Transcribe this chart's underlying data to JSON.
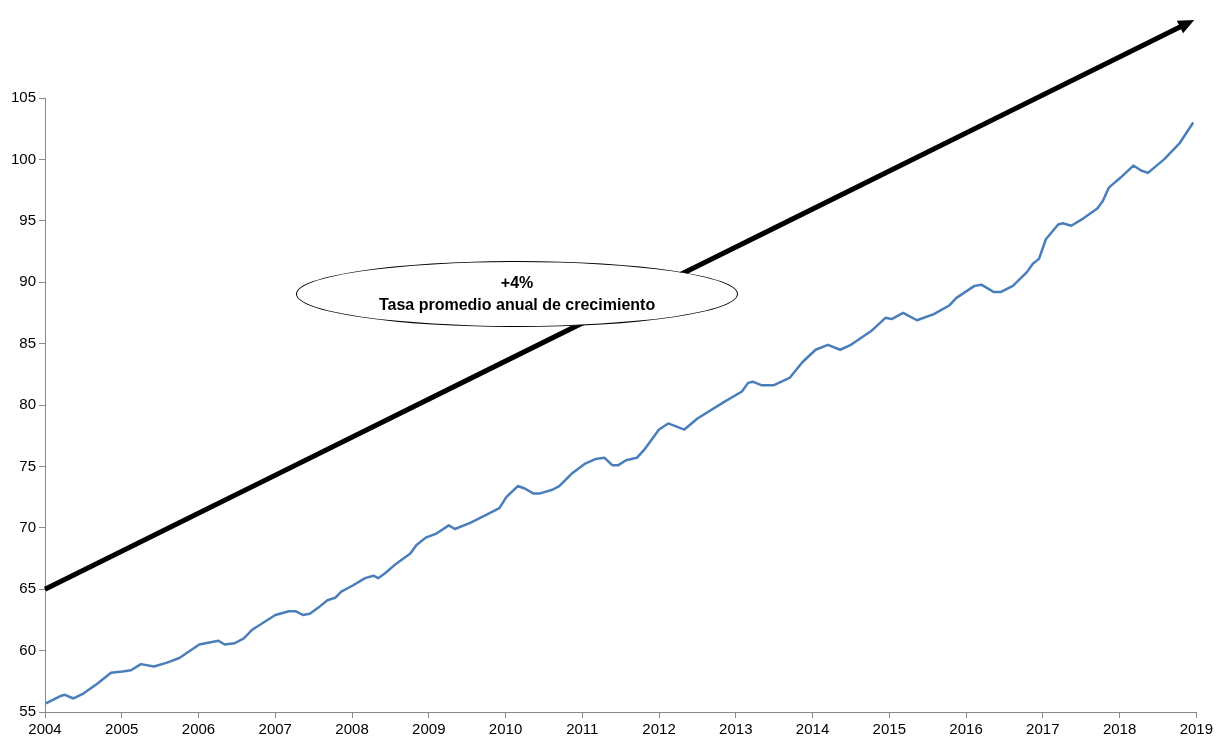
{
  "chart_data": {
    "type": "line",
    "xlim": [
      2004,
      2019
    ],
    "xticks": [
      2004,
      2005,
      2006,
      2007,
      2008,
      2009,
      2010,
      2011,
      2012,
      2013,
      2014,
      2015,
      2016,
      2017,
      2018,
      2019
    ],
    "ylim": [
      55,
      105
    ],
    "yticks": [
      55,
      60,
      65,
      70,
      75,
      80,
      85,
      90,
      95,
      100,
      105
    ],
    "grid": false,
    "marker": "none",
    "line_style": "solid",
    "annotations": [
      "+4%",
      "Tasa promedio anual de crecimiento"
    ],
    "series": [
      {
        "color": "#4a7ebb",
        "x": [
          2004.01,
          2004.2,
          2004.26,
          2004.37,
          2004.5,
          2004.68,
          2004.86,
          2005.01,
          2005.12,
          2005.25,
          2005.42,
          2005.58,
          2005.75,
          2006.01,
          2006.26,
          2006.34,
          2006.47,
          2006.59,
          2006.7,
          2007.0,
          2007.18,
          2007.27,
          2007.36,
          2007.45,
          2007.58,
          2007.68,
          2007.78,
          2007.86,
          2008.01,
          2008.17,
          2008.28,
          2008.34,
          2008.43,
          2008.58,
          2008.76,
          2008.84,
          2008.96,
          2009.09,
          2009.26,
          2009.34,
          2009.54,
          2009.76,
          2009.92,
          2010.01,
          2010.16,
          2010.25,
          2010.36,
          2010.45,
          2010.61,
          2010.7,
          2010.86,
          2011.03,
          2011.17,
          2011.29,
          2011.39,
          2011.47,
          2011.57,
          2011.71,
          2011.8,
          2012.0,
          2012.12,
          2012.33,
          2012.5,
          2012.86,
          2013.08,
          2013.16,
          2013.22,
          2013.34,
          2013.49,
          2013.7,
          2013.87,
          2014.04,
          2014.2,
          2014.36,
          2014.5,
          2014.76,
          2014.95,
          2015.03,
          2015.18,
          2015.36,
          2015.58,
          2015.78,
          2015.87,
          2016.11,
          2016.2,
          2016.36,
          2016.45,
          2016.61,
          2016.79,
          2016.87,
          2016.95,
          2017.04,
          2017.2,
          2017.26,
          2017.37,
          2017.53,
          2017.71,
          2017.78,
          2017.86,
          2018.01,
          2018.18,
          2018.28,
          2018.37,
          2018.58,
          2018.78,
          2018.96
        ],
        "values": [
          55.7,
          56.3,
          56.4,
          56.1,
          56.5,
          57.3,
          58.2,
          58.3,
          58.4,
          58.9,
          58.7,
          59.0,
          59.4,
          60.5,
          60.8,
          60.5,
          60.6,
          61.0,
          61.7,
          62.9,
          63.2,
          63.2,
          62.9,
          63.0,
          63.6,
          64.1,
          64.3,
          64.8,
          65.3,
          65.9,
          66.1,
          65.9,
          66.3,
          67.1,
          67.9,
          68.6,
          69.2,
          69.5,
          70.2,
          69.9,
          70.4,
          71.1,
          71.6,
          72.5,
          73.4,
          73.2,
          72.8,
          72.8,
          73.1,
          73.4,
          74.4,
          75.2,
          75.6,
          75.7,
          75.1,
          75.1,
          75.5,
          75.7,
          76.3,
          78.0,
          78.5,
          78.0,
          78.9,
          80.3,
          81.1,
          81.8,
          81.9,
          81.6,
          81.6,
          82.2,
          83.5,
          84.5,
          84.9,
          84.5,
          84.9,
          86.0,
          87.1,
          87.0,
          87.5,
          86.9,
          87.4,
          88.1,
          88.7,
          89.7,
          89.8,
          89.2,
          89.2,
          89.7,
          90.8,
          91.5,
          91.9,
          93.5,
          94.7,
          94.8,
          94.6,
          95.2,
          96.0,
          96.6,
          97.7,
          98.5,
          99.5,
          99.1,
          98.9,
          100.0,
          101.3,
          103.0
        ]
      }
    ]
  }
}
